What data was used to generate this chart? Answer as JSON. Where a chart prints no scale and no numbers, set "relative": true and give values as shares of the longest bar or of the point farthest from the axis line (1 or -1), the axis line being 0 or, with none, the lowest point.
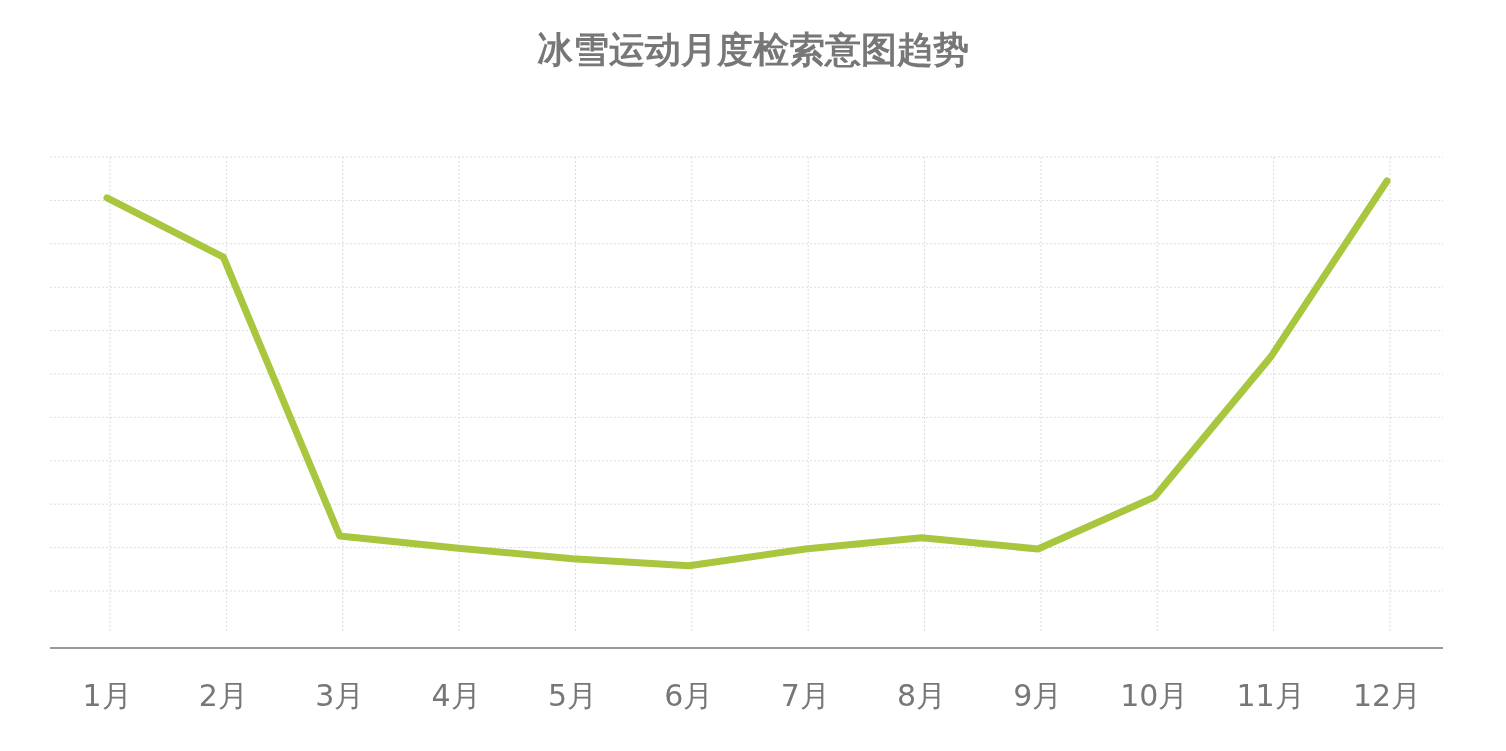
{
  "chart_data": {
    "type": "line",
    "title": "冰雪运动月度检索意图趋势",
    "relative": true,
    "grid": true,
    "marker": "none",
    "line_style": "solid",
    "categories": [
      "1月",
      "2月",
      "3月",
      "4月",
      "5月",
      "6月",
      "7月",
      "8月",
      "9月",
      "10月",
      "11月",
      "12月"
    ],
    "series": [
      {
        "color": "#a8c63e",
        "values": [
          0.964,
          0.837,
          0.24,
          0.214,
          0.191,
          0.176,
          0.212,
          0.236,
          0.212,
          0.323,
          0.623,
          1
        ]
      }
    ]
  }
}
